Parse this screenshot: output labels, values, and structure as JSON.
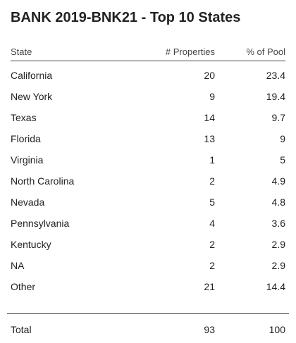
{
  "title": "BANK 2019-BNK21 - Top 10 States",
  "table": {
    "columns": [
      "State",
      "# Properties",
      "% of Pool"
    ],
    "rows": [
      [
        "California",
        20,
        23.4
      ],
      [
        "New York",
        9,
        19.4
      ],
      [
        "Texas",
        14,
        9.7
      ],
      [
        "Florida",
        13,
        9
      ],
      [
        "Virginia",
        1,
        5
      ],
      [
        "North Carolina",
        2,
        4.9
      ],
      [
        "Nevada",
        5,
        4.8
      ],
      [
        "Pennsylvania",
        4,
        3.6
      ],
      [
        "Kentucky",
        2,
        2.9
      ],
      [
        "NA",
        2,
        2.9
      ],
      [
        "Other",
        21,
        14.4
      ]
    ],
    "total": [
      "Total",
      93,
      100
    ]
  }
}
